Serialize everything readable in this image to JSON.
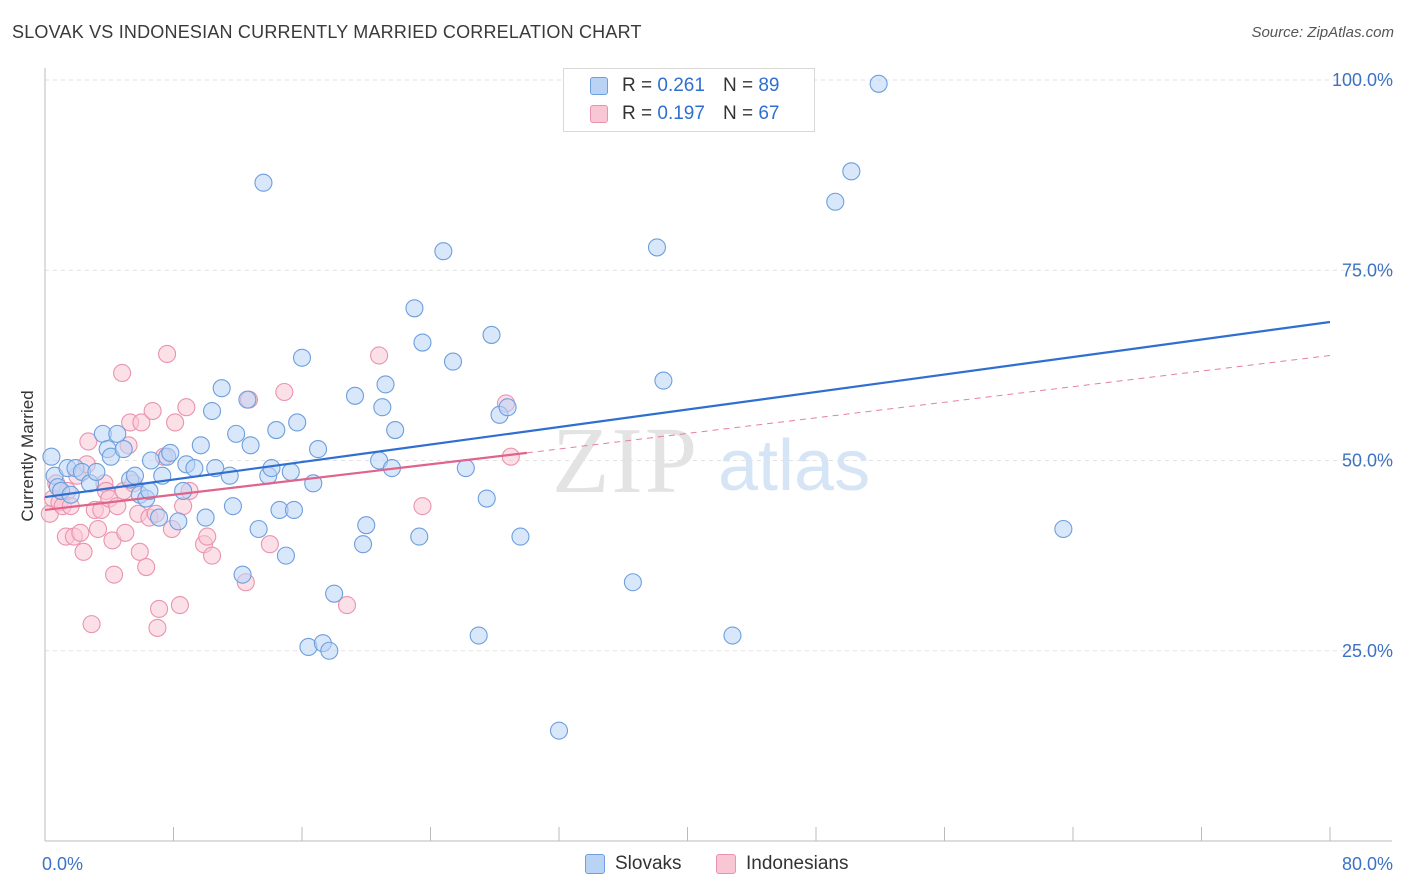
{
  "header": {
    "title": "SLOVAK VS INDONESIAN CURRENTLY MARRIED CORRELATION CHART",
    "source": "Source: ZipAtlas.com"
  },
  "watermark": {
    "zip": "ZIP",
    "atlas": "atlas"
  },
  "legend": {
    "r_label": "R =",
    "n_label": "N =",
    "rows": [
      {
        "series": "Slovaks",
        "r": "0.261",
        "n": "89",
        "color": "#6d9fde"
      },
      {
        "series": "Indonesians",
        "r": "0.197",
        "n": "67",
        "color": "#ea93ae"
      }
    ]
  },
  "chart_data": {
    "type": "scatter",
    "title": "SLOVAK VS INDONESIAN CURRENTLY MARRIED CORRELATION CHART",
    "xlabel": "",
    "ylabel": "Currently Married",
    "xlim": [
      0,
      80
    ],
    "ylim": [
      0,
      100
    ],
    "x_tick_labels": [
      {
        "value": 0,
        "label": "0.0%"
      },
      {
        "value": 80,
        "label": "80.0%"
      }
    ],
    "y_tick_labels": [
      {
        "value": 25,
        "label": "25.0%"
      },
      {
        "value": 50,
        "label": "50.0%"
      },
      {
        "value": 75,
        "label": "75.0%"
      },
      {
        "value": 100,
        "label": "100.0%"
      }
    ],
    "grid": "horizontal dashed",
    "series": [
      {
        "name": "Slovaks",
        "color": "#6d9fde",
        "fill": "#b9d3f5",
        "r": 0.261,
        "n": 89,
        "trend": {
          "x": [
            0,
            80
          ],
          "y": [
            45.2,
            68.2
          ],
          "style": "solid"
        },
        "points": [
          [
            0.4,
            50.5
          ],
          [
            0.6,
            48
          ],
          [
            0.8,
            46.5
          ],
          [
            1.0,
            46
          ],
          [
            1.4,
            49
          ],
          [
            1.6,
            45.5
          ],
          [
            1.9,
            49
          ],
          [
            2.3,
            48.5
          ],
          [
            2.8,
            47
          ],
          [
            3.2,
            48.5
          ],
          [
            3.6,
            53.5
          ],
          [
            3.9,
            51.5
          ],
          [
            4.1,
            50.5
          ],
          [
            4.5,
            53.5
          ],
          [
            4.9,
            51.5
          ],
          [
            5.3,
            47.5
          ],
          [
            5.6,
            48
          ],
          [
            5.9,
            45.5
          ],
          [
            6.3,
            45
          ],
          [
            6.5,
            46
          ],
          [
            6.6,
            50
          ],
          [
            7.1,
            42.5
          ],
          [
            7.3,
            48
          ],
          [
            7.6,
            50.5
          ],
          [
            7.8,
            51
          ],
          [
            8.3,
            42
          ],
          [
            8.6,
            46
          ],
          [
            8.8,
            49.5
          ],
          [
            9.3,
            49
          ],
          [
            9.7,
            52
          ],
          [
            10.0,
            42.5
          ],
          [
            10.4,
            56.5
          ],
          [
            10.6,
            49
          ],
          [
            11.0,
            59.5
          ],
          [
            11.5,
            48
          ],
          [
            11.7,
            44
          ],
          [
            11.9,
            53.5
          ],
          [
            12.3,
            35
          ],
          [
            12.6,
            58
          ],
          [
            12.8,
            52
          ],
          [
            13.3,
            41
          ],
          [
            13.6,
            86.5
          ],
          [
            13.9,
            48
          ],
          [
            14.1,
            49
          ],
          [
            14.4,
            54
          ],
          [
            14.6,
            43.5
          ],
          [
            15.0,
            37.5
          ],
          [
            15.3,
            48.5
          ],
          [
            15.5,
            43.5
          ],
          [
            15.7,
            55
          ],
          [
            16.0,
            63.5
          ],
          [
            16.4,
            25.5
          ],
          [
            16.7,
            47
          ],
          [
            17.0,
            51.5
          ],
          [
            17.3,
            26
          ],
          [
            17.7,
            25
          ],
          [
            18.0,
            32.5
          ],
          [
            19.3,
            58.5
          ],
          [
            19.8,
            39
          ],
          [
            20.0,
            41.5
          ],
          [
            20.8,
            50
          ],
          [
            21.0,
            57
          ],
          [
            21.2,
            60
          ],
          [
            21.6,
            49
          ],
          [
            21.8,
            54
          ],
          [
            23.0,
            70
          ],
          [
            23.3,
            40
          ],
          [
            23.5,
            65.5
          ],
          [
            24.8,
            77.5
          ],
          [
            25.4,
            63
          ],
          [
            26.2,
            49
          ],
          [
            27.0,
            27
          ],
          [
            27.5,
            45
          ],
          [
            27.8,
            66.5
          ],
          [
            28.3,
            56
          ],
          [
            28.8,
            57
          ],
          [
            29.6,
            40
          ],
          [
            32.0,
            14.5
          ],
          [
            36.6,
            34
          ],
          [
            38.1,
            78
          ],
          [
            38.5,
            60.5
          ],
          [
            42.8,
            27
          ],
          [
            49.2,
            84
          ],
          [
            50.2,
            88
          ],
          [
            51.9,
            99.5
          ],
          [
            63.4,
            41
          ]
        ]
      },
      {
        "name": "Indonesians",
        "color": "#ea93ae",
        "fill": "#f9c6d6",
        "r": 0.197,
        "n": 67,
        "trend": {
          "x": [
            0,
            30
          ],
          "y": [
            43.5,
            51
          ],
          "style": "solid",
          "extension": {
            "x": [
              30,
              80
            ],
            "y": [
              51,
              63.8
            ],
            "style": "dashed"
          }
        },
        "points": [
          [
            0.3,
            43
          ],
          [
            0.5,
            45
          ],
          [
            0.7,
            47
          ],
          [
            0.9,
            44.5
          ],
          [
            1.1,
            44
          ],
          [
            1.3,
            40
          ],
          [
            1.4,
            46
          ],
          [
            1.6,
            44
          ],
          [
            1.8,
            40
          ],
          [
            2.0,
            48
          ],
          [
            2.2,
            40.5
          ],
          [
            2.4,
            38
          ],
          [
            2.6,
            49.5
          ],
          [
            2.7,
            52.5
          ],
          [
            2.9,
            28.5
          ],
          [
            3.1,
            43.5
          ],
          [
            3.3,
            41
          ],
          [
            3.5,
            43.5
          ],
          [
            3.7,
            47
          ],
          [
            3.8,
            46
          ],
          [
            4.0,
            45
          ],
          [
            4.2,
            39.5
          ],
          [
            4.3,
            35
          ],
          [
            4.5,
            44
          ],
          [
            4.8,
            61.5
          ],
          [
            4.9,
            46
          ],
          [
            5.0,
            40.5
          ],
          [
            5.2,
            52
          ],
          [
            5.3,
            55
          ],
          [
            5.5,
            47
          ],
          [
            5.8,
            43
          ],
          [
            5.9,
            38
          ],
          [
            6.0,
            55
          ],
          [
            6.3,
            36
          ],
          [
            6.5,
            42.5
          ],
          [
            6.7,
            56.5
          ],
          [
            6.9,
            43
          ],
          [
            7.0,
            28
          ],
          [
            7.1,
            30.5
          ],
          [
            7.4,
            50.5
          ],
          [
            7.6,
            64
          ],
          [
            7.9,
            41
          ],
          [
            8.1,
            55
          ],
          [
            8.4,
            31
          ],
          [
            8.6,
            44
          ],
          [
            8.8,
            57
          ],
          [
            9.0,
            46
          ],
          [
            9.9,
            39
          ],
          [
            10.1,
            40
          ],
          [
            10.4,
            37.5
          ],
          [
            12.5,
            34
          ],
          [
            12.7,
            58
          ],
          [
            14.0,
            39
          ],
          [
            14.9,
            59
          ],
          [
            18.8,
            31
          ],
          [
            20.8,
            63.8
          ],
          [
            23.5,
            44
          ],
          [
            28.7,
            57.5
          ],
          [
            29.0,
            50.5
          ]
        ]
      }
    ]
  }
}
